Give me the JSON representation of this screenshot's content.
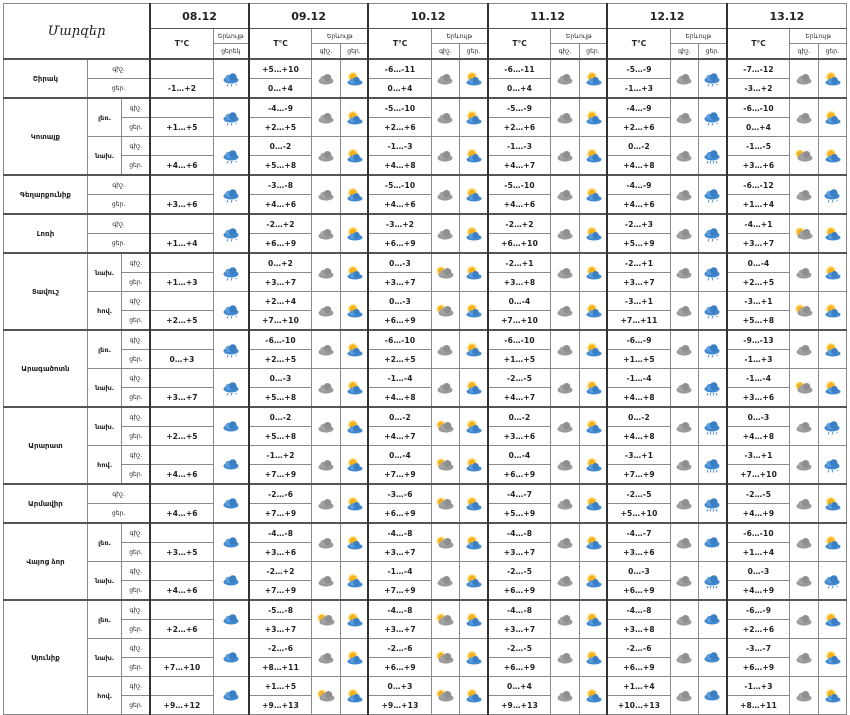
{
  "header": {
    "title": "Մարզեր",
    "temp_label": "T°C",
    "phen_label": "Երևույթ",
    "day_label": "ցերեկ",
    "night_short": "գիշ.",
    "day_short": "ցեր.",
    "dates": [
      "08.12",
      "09.12",
      "10.12",
      "11.12",
      "12.12",
      "13.12"
    ]
  },
  "regions": [
    {
      "name": "Շիրակ",
      "parts": [
        {
          "label": "",
          "rows": [
            {
              "time": "գիշ.",
              "t": [
                "",
                "+5…+10",
                "-6…-11",
                "-6…-11",
                "-5…-9",
                "-7…-12"
              ],
              "i": [
                "rainsnow",
                "cloud",
                "cloud",
                "cloud",
                "cloud",
                "cloud"
              ],
              "j": [
                "",
                "sun",
                "sun",
                "sun",
                "rainsnow",
                "sun"
              ]
            },
            {
              "time": "ցեր.",
              "t": [
                "-1…+2",
                "0…+4",
                "0…+4",
                "0…+4",
                "-1…+3",
                "-3…+2"
              ]
            }
          ]
        }
      ]
    },
    {
      "name": "Կոտայք",
      "parts": [
        {
          "label": "լեռ.",
          "rows": [
            {
              "time": "գիշ.",
              "t": [
                "",
                "-4…-9",
                "-5…-10",
                "-5…-9",
                "-4…-9",
                "-6…-10"
              ],
              "i": [
                "rainsnow",
                "cloud",
                "cloud",
                "cloud",
                "cloud",
                "cloud"
              ],
              "j": [
                "",
                "sun",
                "sun",
                "sun",
                "rainsnow",
                "sun"
              ]
            },
            {
              "time": "ցեր.",
              "t": [
                "+1…+5",
                "+2…+5",
                "+2…+6",
                "+2…+6",
                "+2…+6",
                "0…+4"
              ]
            }
          ]
        },
        {
          "label": "նախ.",
          "rows": [
            {
              "time": "գիշ.",
              "t": [
                "",
                "0…-2",
                "-1…-3",
                "-1…-3",
                "0…-2",
                "-1…-5"
              ],
              "i": [
                "rainsnow",
                "cloud",
                "cloud",
                "cloud",
                "cloud",
                "partly"
              ],
              "j": [
                "",
                "sun",
                "sun",
                "sun",
                "rain",
                "sun"
              ]
            },
            {
              "time": "ցեր.",
              "t": [
                "+4…+6",
                "+5…+8",
                "+4…+8",
                "+4…+7",
                "+4…+8",
                "+3…+6"
              ]
            }
          ]
        }
      ]
    },
    {
      "name": "Գեղարքունիք",
      "parts": [
        {
          "label": "",
          "rows": [
            {
              "time": "գիշ.",
              "t": [
                "",
                "-3…-8",
                "-5…-10",
                "-5…-10",
                "-4…-9",
                "-6…-12"
              ],
              "i": [
                "rainsnow",
                "cloud",
                "cloud",
                "cloud",
                "cloud",
                "cloud"
              ],
              "j": [
                "",
                "sun",
                "sun",
                "sun",
                "rainsnow",
                "rainsnow"
              ]
            },
            {
              "time": "ցեր.",
              "t": [
                "+3…+6",
                "+4…+6",
                "+4…+6",
                "+4…+6",
                "+4…+6",
                "+1…+4"
              ]
            }
          ]
        }
      ]
    },
    {
      "name": "Լոռի",
      "parts": [
        {
          "label": "",
          "rows": [
            {
              "time": "գիշ.",
              "t": [
                "",
                "-2…+2",
                "-3…+2",
                "-2…+2",
                "-2…+3",
                "-4…+1"
              ],
              "i": [
                "rainsnow",
                "cloud",
                "cloud",
                "cloud",
                "cloud",
                "partly"
              ],
              "j": [
                "",
                "sun",
                "sun",
                "sun",
                "rainsnow",
                "sun"
              ]
            },
            {
              "time": "ցեր.",
              "t": [
                "+1…+4",
                "+6…+9",
                "+6…+9",
                "+6…+10",
                "+5…+9",
                "+3…+7"
              ]
            }
          ]
        }
      ]
    },
    {
      "name": "Տավուշ",
      "parts": [
        {
          "label": "նախ.",
          "rows": [
            {
              "time": "գիշ.",
              "t": [
                "",
                "0…+2",
                "0…-3",
                "-2…+1",
                "-2…+1",
                "0…-4"
              ],
              "i": [
                "rainsnow",
                "cloud",
                "partly",
                "cloud",
                "cloud",
                "cloud"
              ],
              "j": [
                "",
                "sun",
                "sun",
                "sun",
                "rainsnow",
                "sun"
              ]
            },
            {
              "time": "ցեր.",
              "t": [
                "+1…+3",
                "+3…+7",
                "+3…+7",
                "+3…+8",
                "+3…+7",
                "+2…+5"
              ]
            }
          ]
        },
        {
          "label": "հով.",
          "rows": [
            {
              "time": "գիշ.",
              "t": [
                "",
                "+2…+4",
                "0…-3",
                "0…-4",
                "-3…+1",
                "-3…+1"
              ],
              "i": [
                "rainsnow",
                "cloud",
                "partly",
                "cloud",
                "cloud",
                "partly"
              ],
              "j": [
                "",
                "sun",
                "sun",
                "sun",
                "rainsnow",
                "sun"
              ]
            },
            {
              "time": "ցեր.",
              "t": [
                "+2…+5",
                "+7…+10",
                "+6…+9",
                "+7…+10",
                "+7…+11",
                "+5…+8"
              ]
            }
          ]
        }
      ]
    },
    {
      "name": "Արագածոտն",
      "parts": [
        {
          "label": "լեռ.",
          "rows": [
            {
              "time": "գիշ.",
              "t": [
                "",
                "-6…-10",
                "-6…-10",
                "-6…-10",
                "-6…-9",
                "-9…-13"
              ],
              "i": [
                "rainsnow",
                "cloud",
                "cloud",
                "cloud",
                "cloud",
                "cloud"
              ],
              "j": [
                "",
                "sun",
                "sun",
                "sun",
                "rainsnow",
                "sun"
              ]
            },
            {
              "time": "ցեր.",
              "t": [
                "0…+3",
                "+2…+5",
                "+2…+5",
                "+1…+5",
                "+1…+5",
                "-1…+3"
              ]
            }
          ]
        },
        {
          "label": "նախ.",
          "rows": [
            {
              "time": "գիշ.",
              "t": [
                "",
                "0…-3",
                "-1…-4",
                "-2…-5",
                "-1…-4",
                "-1…-4"
              ],
              "i": [
                "rainsnow",
                "cloud",
                "cloud",
                "cloud",
                "cloud",
                "partly"
              ],
              "j": [
                "",
                "sun",
                "sun",
                "sun",
                "rain",
                "sun"
              ]
            },
            {
              "time": "ցեր.",
              "t": [
                "+3…+7",
                "+5…+8",
                "+4…+8",
                "+4…+7",
                "+4…+8",
                "+3…+6"
              ]
            }
          ]
        }
      ]
    },
    {
      "name": "Արարատ",
      "parts": [
        {
          "label": "նախ.",
          "rows": [
            {
              "time": "գիշ.",
              "t": [
                "",
                "0…-2",
                "0…-2",
                "0…-2",
                "0…-2",
                "0…-3"
              ],
              "i": [
                "cloudonly",
                "cloud",
                "partly",
                "cloud",
                "cloud",
                "cloud"
              ],
              "j": [
                "",
                "sun",
                "sun",
                "sun",
                "rain",
                "rainsnow"
              ]
            },
            {
              "time": "ցեր.",
              "t": [
                "+2…+5",
                "+5…+8",
                "+4…+7",
                "+3…+6",
                "+4…+8",
                "+4…+8"
              ]
            }
          ]
        },
        {
          "label": "հով.",
          "rows": [
            {
              "time": "գիշ.",
              "t": [
                "",
                "-1…+2",
                "0…-4",
                "0…-4",
                "-3…+1",
                "-3…+1"
              ],
              "i": [
                "cloudonly",
                "cloud",
                "partly",
                "cloud",
                "cloud",
                "cloud"
              ],
              "j": [
                "",
                "sun",
                "sun",
                "sun",
                "rain",
                "rainsnow"
              ]
            },
            {
              "time": "ցեր.",
              "t": [
                "+4…+6",
                "+7…+9",
                "+7…+9",
                "+6…+9",
                "+7…+9",
                "+7…+10"
              ]
            }
          ]
        }
      ]
    },
    {
      "name": "Արմավիր",
      "parts": [
        {
          "label": "",
          "rows": [
            {
              "time": "գիշ.",
              "t": [
                "",
                "-2…-6",
                "-3…-6",
                "-4…-7",
                "-2…-5",
                "-2…-5"
              ],
              "i": [
                "cloudonly",
                "cloud",
                "partly",
                "cloud",
                "cloud",
                "cloud"
              ],
              "j": [
                "",
                "sun",
                "sun",
                "sun",
                "rain",
                "sun"
              ]
            },
            {
              "time": "ցեր.",
              "t": [
                "+4…+6",
                "+7…+9",
                "+6…+9",
                "+5…+9",
                "+5…+10",
                "+4…+9"
              ]
            }
          ]
        }
      ]
    },
    {
      "name": "Վայոց ձոր",
      "parts": [
        {
          "label": "լեռ.",
          "rows": [
            {
              "time": "գիշ.",
              "t": [
                "",
                "-4…-8",
                "-4…-8",
                "-4…-8",
                "-4…-7",
                "-6…-10"
              ],
              "i": [
                "cloudonly",
                "cloud",
                "partly",
                "cloud",
                "cloud",
                "cloud"
              ],
              "j": [
                "",
                "sun",
                "sun",
                "sun",
                "cloudonly",
                "sun"
              ]
            },
            {
              "time": "ցեր.",
              "t": [
                "+3…+5",
                "+3…+6",
                "+3…+7",
                "+3…+7",
                "+3…+6",
                "+1…+4"
              ]
            }
          ]
        },
        {
          "label": "նախ.",
          "rows": [
            {
              "time": "գիշ.",
              "t": [
                "",
                "-2…+2",
                "-1…-4",
                "-2…-5",
                "0…-3",
                "0…-3"
              ],
              "i": [
                "cloudonly",
                "cloud",
                "cloud",
                "cloud",
                "cloud",
                "cloud"
              ],
              "j": [
                "",
                "sun",
                "sun",
                "sun",
                "rain",
                "rainsnow"
              ]
            },
            {
              "time": "ցեր.",
              "t": [
                "+4…+6",
                "+7…+9",
                "+7…+9",
                "+6…+9",
                "+6…+9",
                "+4…+9"
              ]
            }
          ]
        }
      ]
    },
    {
      "name": "Սյունիք",
      "parts": [
        {
          "label": "լեռ.",
          "rows": [
            {
              "time": "գիշ.",
              "t": [
                "",
                "-5…-8",
                "-4…-8",
                "-4…-8",
                "-4…-8",
                "-6…-9"
              ],
              "i": [
                "cloudonly",
                "partly",
                "partly",
                "cloud",
                "cloud",
                "cloud"
              ],
              "j": [
                "",
                "sun",
                "sun",
                "sun",
                "cloudonly",
                "sun"
              ]
            },
            {
              "time": "ցեր.",
              "t": [
                "+2…+6",
                "+3…+7",
                "+3…+7",
                "+3…+7",
                "+3…+8",
                "+2…+6"
              ]
            }
          ]
        },
        {
          "label": "նախ.",
          "rows": [
            {
              "time": "գիշ.",
              "t": [
                "",
                "-2…-6",
                "-2…-6",
                "-2…-5",
                "-2…-6",
                "-3…-7"
              ],
              "i": [
                "cloudonly",
                "cloud",
                "partly",
                "cloud",
                "cloud",
                "cloud"
              ],
              "j": [
                "",
                "sun",
                "sun",
                "sun",
                "cloudonly",
                "sun"
              ]
            },
            {
              "time": "ցեր.",
              "t": [
                "+7…+10",
                "+8…+11",
                "+6…+9",
                "+6…+9",
                "+6…+9",
                "+6…+9"
              ]
            }
          ]
        },
        {
          "label": "հով.",
          "rows": [
            {
              "time": "գիշ.",
              "t": [
                "",
                "+1…+5",
                "0…+3",
                "0…+4",
                "+1…+4",
                "-1…+3"
              ],
              "i": [
                "cloudonly",
                "partly",
                "partly",
                "cloud",
                "cloud",
                "cloud"
              ],
              "j": [
                "",
                "sun",
                "sun",
                "sun",
                "cloudonly",
                "sun"
              ]
            },
            {
              "time": "ցեր.",
              "t": [
                "+9…+12",
                "+9…+13",
                "+9…+13",
                "+9…+13",
                "+10…+13",
                "+8…+11"
              ]
            }
          ]
        }
      ]
    }
  ]
}
